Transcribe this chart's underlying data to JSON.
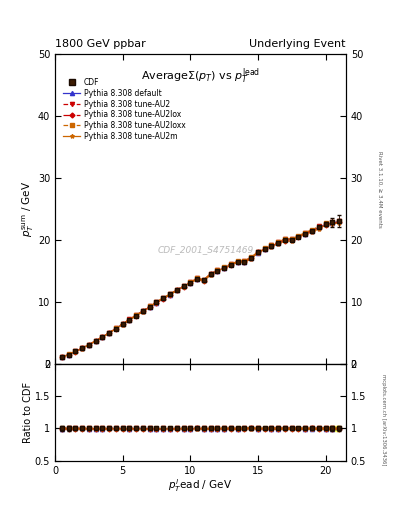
{
  "title_left": "1800 GeV ppbar",
  "title_right": "Underlying Event",
  "plot_title": "AverageΣ(p_T) vs p_T^{lead}",
  "xlabel": "p_T^{l}ead / GeV",
  "ylabel_main": "p_Tˢum / GeV",
  "ylabel_ratio": "Ratio to CDF",
  "right_label_main": "Rivet 3.1.10, ≥ 3.4M events",
  "right_label_ratio": "mcplots.cern.ch [arXiv:1306.3436]",
  "watermark": "CDF_2001_S4751469",
  "xmin": 0,
  "xmax": 21.5,
  "ymin_main": 0,
  "ymax_main": 50,
  "ymin_ratio": 0.5,
  "ymax_ratio": 2.0,
  "x_data": [
    0.5,
    1.0,
    1.5,
    2.0,
    2.5,
    3.0,
    3.5,
    4.0,
    4.5,
    5.0,
    5.5,
    6.0,
    6.5,
    7.0,
    7.5,
    8.0,
    8.5,
    9.0,
    9.5,
    10.0,
    10.5,
    11.0,
    11.5,
    12.0,
    12.5,
    13.0,
    13.5,
    14.0,
    14.5,
    15.0,
    15.5,
    16.0,
    16.5,
    17.0,
    17.5,
    18.0,
    18.5,
    19.0,
    19.5,
    20.0,
    20.5,
    21.0
  ],
  "y_cdf": [
    1.1,
    1.5,
    2.0,
    2.5,
    3.1,
    3.7,
    4.3,
    5.0,
    5.7,
    6.4,
    7.1,
    7.8,
    8.5,
    9.2,
    9.9,
    10.6,
    11.2,
    11.9,
    12.5,
    13.1,
    13.7,
    13.5,
    14.5,
    15.0,
    15.5,
    16.0,
    16.5,
    16.5,
    17.0,
    18.0,
    18.5,
    19.0,
    19.5,
    20.0,
    20.0,
    20.5,
    21.0,
    21.5,
    22.0,
    22.5,
    22.8,
    23.0
  ],
  "y_err": [
    0.05,
    0.05,
    0.05,
    0.05,
    0.05,
    0.05,
    0.05,
    0.05,
    0.05,
    0.05,
    0.05,
    0.05,
    0.05,
    0.05,
    0.05,
    0.05,
    0.05,
    0.05,
    0.05,
    0.05,
    0.05,
    0.05,
    0.05,
    0.05,
    0.05,
    0.05,
    0.05,
    0.05,
    0.05,
    0.05,
    0.05,
    0.05,
    0.05,
    0.05,
    0.05,
    0.05,
    0.05,
    0.05,
    0.05,
    0.3,
    0.8,
    1.0
  ],
  "series": [
    {
      "label": "Pythia 8.308 default",
      "color": "#3333cc",
      "linestyle": "-",
      "marker": "^",
      "markersize": 3
    },
    {
      "label": "Pythia 8.308 tune-AU2",
      "color": "#cc0000",
      "linestyle": "--",
      "marker": "v",
      "markersize": 3
    },
    {
      "label": "Pythia 8.308 tune-AU2lox",
      "color": "#cc0000",
      "linestyle": "-.",
      "marker": "D",
      "markersize": 2.5
    },
    {
      "label": "Pythia 8.308 tune-AU2loxx",
      "color": "#cc6600",
      "linestyle": "--",
      "marker": "s",
      "markersize": 3
    },
    {
      "label": "Pythia 8.308 tune-AU2m",
      "color": "#cc6600",
      "linestyle": "-",
      "marker": "*",
      "markersize": 3
    }
  ],
  "series_offsets": [
    0.0,
    0.004,
    -0.004,
    0.007,
    -0.007
  ],
  "yticks_main": [
    0,
    10,
    20,
    30,
    40,
    50
  ],
  "yticks_ratio": [
    0.5,
    1.0,
    1.5,
    2.0
  ],
  "xticks": [
    0,
    5,
    10,
    15,
    20
  ]
}
